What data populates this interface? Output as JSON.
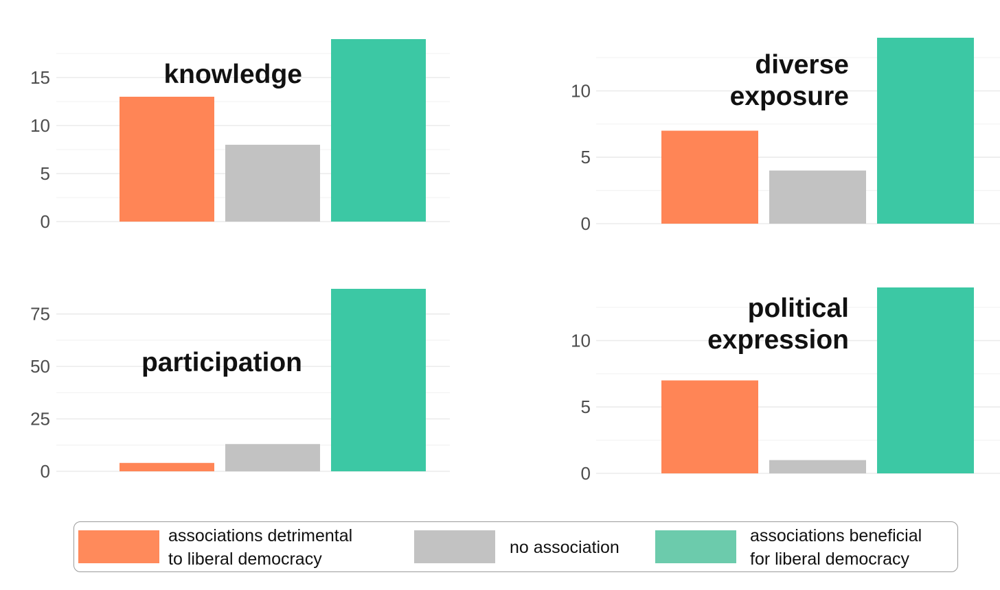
{
  "chart_data": [
    {
      "type": "bar",
      "title": "knowledge",
      "categories": [
        "associations detrimental to liberal democracy",
        "no association",
        "associations beneficial for liberal democracy"
      ],
      "values": [
        13,
        8,
        19
      ],
      "ylim": [
        0,
        19
      ],
      "yticks": [
        0,
        5,
        10,
        15
      ],
      "grid": true
    },
    {
      "type": "bar",
      "title": "diverse exposure",
      "categories": [
        "associations detrimental to liberal democracy",
        "no association",
        "associations beneficial for liberal democracy"
      ],
      "values": [
        7,
        4,
        14
      ],
      "ylim": [
        0,
        14
      ],
      "yticks": [
        0,
        5,
        10
      ],
      "grid": true
    },
    {
      "type": "bar",
      "title": "participation",
      "categories": [
        "associations detrimental to liberal democracy",
        "no association",
        "associations beneficial for liberal democracy"
      ],
      "values": [
        4,
        13,
        87
      ],
      "ylim": [
        0,
        87
      ],
      "yticks": [
        0,
        25,
        50,
        75
      ],
      "grid": true
    },
    {
      "type": "bar",
      "title": "political expression",
      "categories": [
        "associations detrimental to liberal democracy",
        "no association",
        "associations beneficial for liberal democracy"
      ],
      "values": [
        7,
        1,
        14
      ],
      "ylim": [
        0,
        14
      ],
      "yticks": [
        0,
        5,
        10
      ],
      "grid": true
    }
  ],
  "legend": {
    "placement": "bottom",
    "items": [
      {
        "label_line1": "associations detrimental",
        "label_line2": "to liberal democracy",
        "color": "#ff8a5b"
      },
      {
        "label_line1": "no association",
        "label_line2": "",
        "color": "#c2c2c2"
      },
      {
        "label_line1": "associations beneficial",
        "label_line2": "for liberal democracy",
        "color": "#6ccbac"
      }
    ]
  },
  "colors": {
    "detrimental": "#ff8556",
    "none": "#c2c2c2",
    "beneficial": "#3cc8a4",
    "grid": "#ebebeb",
    "tick_text": "#4d4d4d"
  }
}
